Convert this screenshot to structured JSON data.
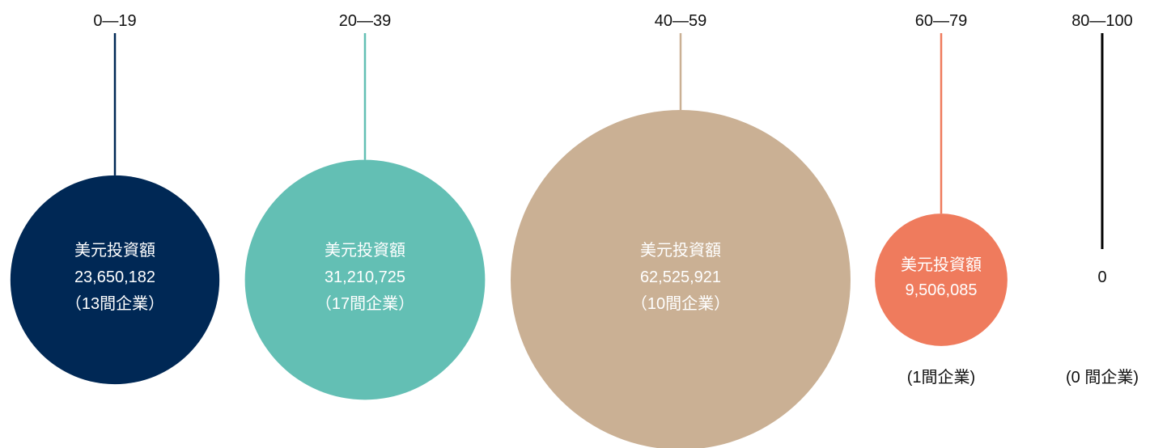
{
  "chart_data": {
    "type": "bubble",
    "title": "",
    "value_unit_label": "美元投資額",
    "groups": [
      {
        "range": "0—19",
        "value": 23650182,
        "value_label": "23,650,182",
        "count_label": "（13間企業）",
        "color": "#002855",
        "text_color": "#ffffff",
        "line_color": "#002855",
        "count_inside": true
      },
      {
        "range": "20—39",
        "value": 31210725,
        "value_label": "31,210,725",
        "count_label": "（17間企業）",
        "color": "#63BFB4",
        "text_color": "#ffffff",
        "line_color": "#63BFB4",
        "count_inside": true
      },
      {
        "range": "40—59",
        "value": 62525921,
        "value_label": "62,525,921",
        "count_label": "（10間企業）",
        "color": "#CAB094",
        "text_color": "#ffffff",
        "line_color": "#CAB094",
        "count_inside": true
      },
      {
        "range": "60—79",
        "value": 9506085,
        "value_label": "9,506,085",
        "count_label": "(1間企業)",
        "color": "#EF7B5D",
        "text_color": "#ffffff",
        "line_color": "#EF7B5D",
        "count_inside": false
      },
      {
        "range": "80—100",
        "value": 0,
        "value_label": "0",
        "count_label": "(0 間企業)",
        "color": "#000000",
        "text_color": "#111111",
        "line_color": "#000000",
        "count_inside": false
      }
    ]
  }
}
